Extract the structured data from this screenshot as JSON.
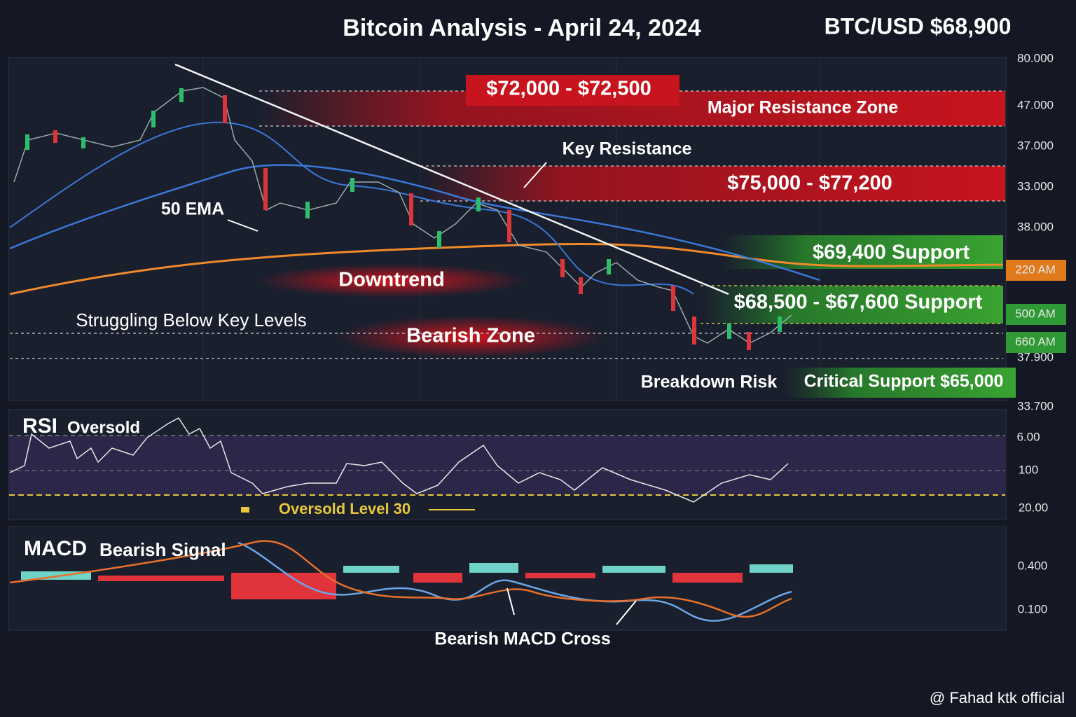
{
  "header": {
    "title": "Bitcoin Analysis - April 24, 2024",
    "ticker": "BTC/USD $68,900"
  },
  "price_panel": {
    "axis_labels": [
      "80.000",
      "47.000",
      "37.000",
      "33.000",
      "38.000",
      "220 AM",
      "500 AM",
      "660 AM",
      "37.900",
      "33.700"
    ],
    "zones": [
      {
        "label": "$72,000 - $72,500",
        "name": "Major Resistance Zone"
      },
      {
        "label": "$75,000 - $77,200"
      },
      {
        "label": "$69,400 Support"
      },
      {
        "label": "$68,500 - $67,600 Support"
      },
      {
        "label": "Critical Support $65,000"
      }
    ],
    "annotations": [
      "Key Resistance",
      "50 EMA",
      "Downtrend",
      "Bearish Zone",
      "Struggling Below Key Levels",
      "Breakdown Risk"
    ]
  },
  "rsi_panel": {
    "title": "RSI",
    "subtitle": "Oversold",
    "level_label": "Oversold Level 30",
    "axis_labels": [
      "6.00",
      "100",
      "20.00"
    ]
  },
  "macd_panel": {
    "title": "MACD",
    "subtitle": "Bearish Signal",
    "annotation": "Bearish MACD Cross",
    "axis_labels": [
      "0.400",
      "0.100"
    ]
  },
  "watermark": "@ Fahad ktk official"
}
